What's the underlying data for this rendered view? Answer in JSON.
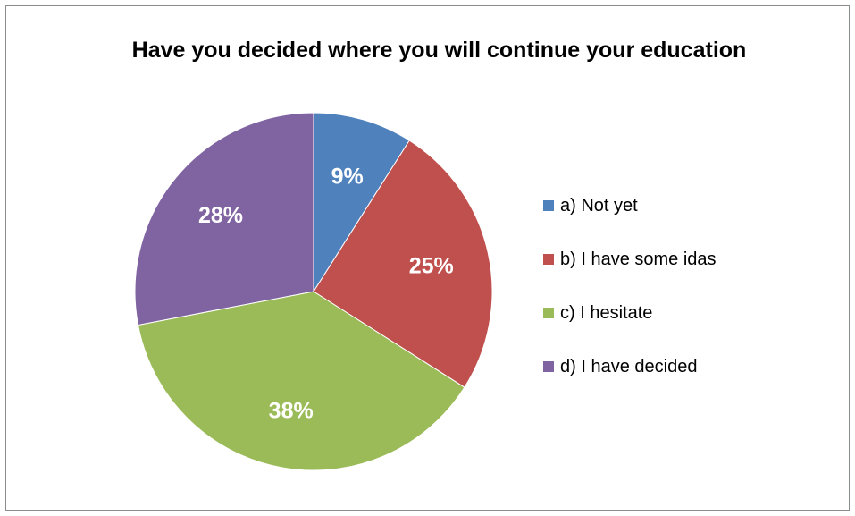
{
  "chart_data": {
    "type": "pie",
    "title": "Have you decided where you will continue your education",
    "categories": [
      "a) Not yet",
      "b) I have some idas",
      "c) I hesitate",
      "d) I have decided"
    ],
    "values": [
      9,
      25,
      38,
      28
    ],
    "value_labels": [
      "9%",
      "25%",
      "38%",
      "28%"
    ],
    "colors": [
      "#4f81bd",
      "#c0504d",
      "#9bbb59",
      "#8064a2"
    ],
    "legend_position": "right"
  }
}
